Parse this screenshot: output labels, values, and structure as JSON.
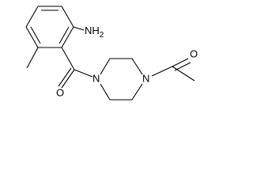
{
  "molecule": {
    "atoms": [
      {
        "label": "NH",
        "subscript": "2"
      },
      {
        "label": "O"
      },
      {
        "label": "N"
      },
      {
        "label": "N"
      },
      {
        "label": "O"
      }
    ]
  }
}
